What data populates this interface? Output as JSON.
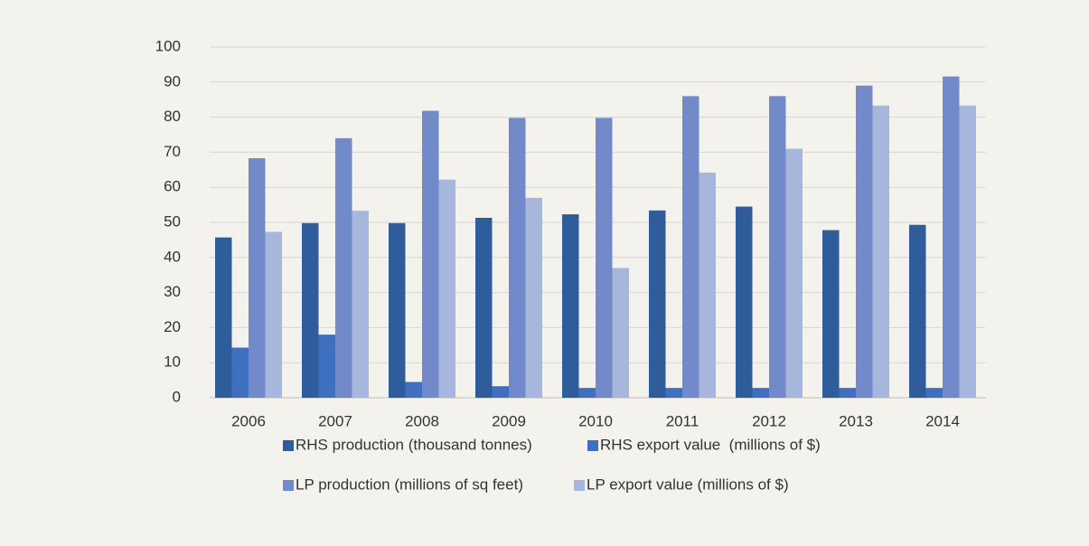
{
  "chart_data": {
    "type": "bar",
    "categories": [
      "2006",
      "2007",
      "2008",
      "2009",
      "2010",
      "2011",
      "2012",
      "2013",
      "2014"
    ],
    "series": [
      {
        "name": "RHS production (thousand tonnes)",
        "color": "#2f5d9b",
        "values": [
          45.7,
          49.8,
          49.8,
          51.3,
          52.3,
          53.4,
          54.5,
          47.8,
          49.3
        ]
      },
      {
        "name": "RHS export value  (millions of $)",
        "color": "#3f70c0",
        "values": [
          14.3,
          18,
          4.5,
          3.3,
          2.8,
          2.8,
          2.8,
          2.8,
          2.8
        ]
      },
      {
        "name": "LP production (millions of sq feet)",
        "color": "#728ac9",
        "values": [
          68.3,
          74,
          81.8,
          79.8,
          79.8,
          86,
          86,
          89,
          91.6
        ]
      },
      {
        "name": "LP export value (millions of $)",
        "color": "#a7b6dc",
        "values": [
          47.3,
          53.3,
          62.2,
          57,
          37,
          64.2,
          71,
          83.3,
          83.3
        ]
      }
    ],
    "ylim": [
      0,
      100
    ],
    "yticks": [
      0,
      10,
      20,
      30,
      40,
      50,
      60,
      70,
      80,
      90,
      100
    ],
    "grid": true,
    "legend": "bottom"
  }
}
